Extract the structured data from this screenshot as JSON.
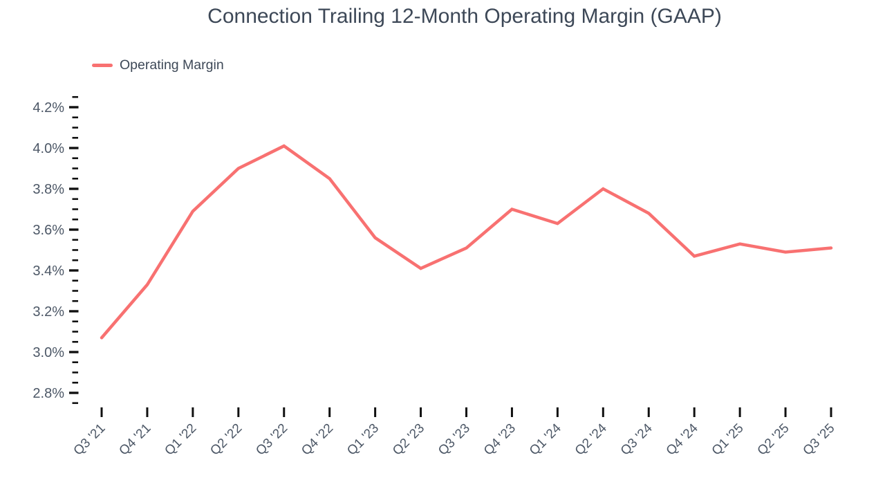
{
  "chart_data": {
    "type": "line",
    "title": "Connection Trailing 12-Month Operating Margin (GAAP)",
    "categories": [
      "Q3 '21",
      "Q4 '21",
      "Q1 '22",
      "Q2 '22",
      "Q3 '22",
      "Q4 '22",
      "Q1 '23",
      "Q2 '23",
      "Q3 '23",
      "Q4 '23",
      "Q1 '24",
      "Q2 '24",
      "Q3 '24",
      "Q4 '24",
      "Q1 '25",
      "Q2 '25",
      "Q3 '25"
    ],
    "series": [
      {
        "name": "Operating Margin",
        "color": "#F87171",
        "values": [
          3.07,
          3.33,
          3.69,
          3.9,
          4.01,
          3.85,
          3.56,
          3.41,
          3.51,
          3.7,
          3.63,
          3.8,
          3.68,
          3.47,
          3.53,
          3.49,
          3.51
        ]
      }
    ],
    "xlabel": "",
    "ylabel": "",
    "ylim": [
      2.8,
      4.2
    ],
    "ytick_values": [
      4.2,
      4.0,
      3.8,
      3.6,
      3.4,
      3.2,
      3.0,
      2.8
    ],
    "ytick_labels": [
      "4.2%",
      "4.0%",
      "3.8%",
      "3.6%",
      "3.4%",
      "3.2%",
      "3.0%",
      "2.8%"
    ],
    "ytick_minor_step": 0.05,
    "ytick_minor_range": [
      2.75,
      4.25
    ],
    "grid": false,
    "legend_position": "top-left",
    "colors": {
      "title_text": "#3D4857",
      "axis_label_text": "#4C5766",
      "tick_marks": "#101010"
    }
  }
}
